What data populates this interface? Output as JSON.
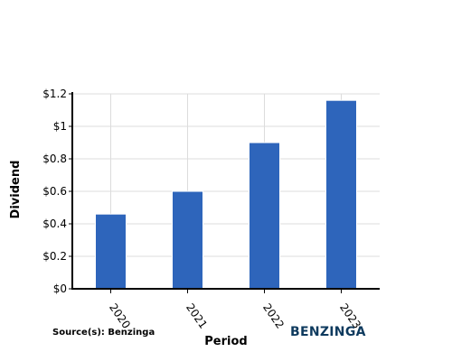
{
  "chart_data": {
    "type": "bar",
    "categories": [
      "2020",
      "2021",
      "2022",
      "2023"
    ],
    "values": [
      0.46,
      0.6,
      0.9,
      1.16
    ],
    "xlabel": "Period",
    "ylabel": "Dividend",
    "ylim": [
      0,
      1.2
    ],
    "y_ticks": [
      "$0",
      "$0.2",
      "$0.4",
      "$0.6",
      "$0.8",
      "$1",
      "$1.2"
    ],
    "y_tick_values": [
      0,
      0.2,
      0.4,
      0.6,
      0.8,
      1.0,
      1.2
    ],
    "grid": true,
    "bar_color": "#2e65bb"
  },
  "footer": {
    "source": "Source(s): Benzinga",
    "brand": "BENZINGA",
    "brand_color": "#0e3a5e"
  }
}
